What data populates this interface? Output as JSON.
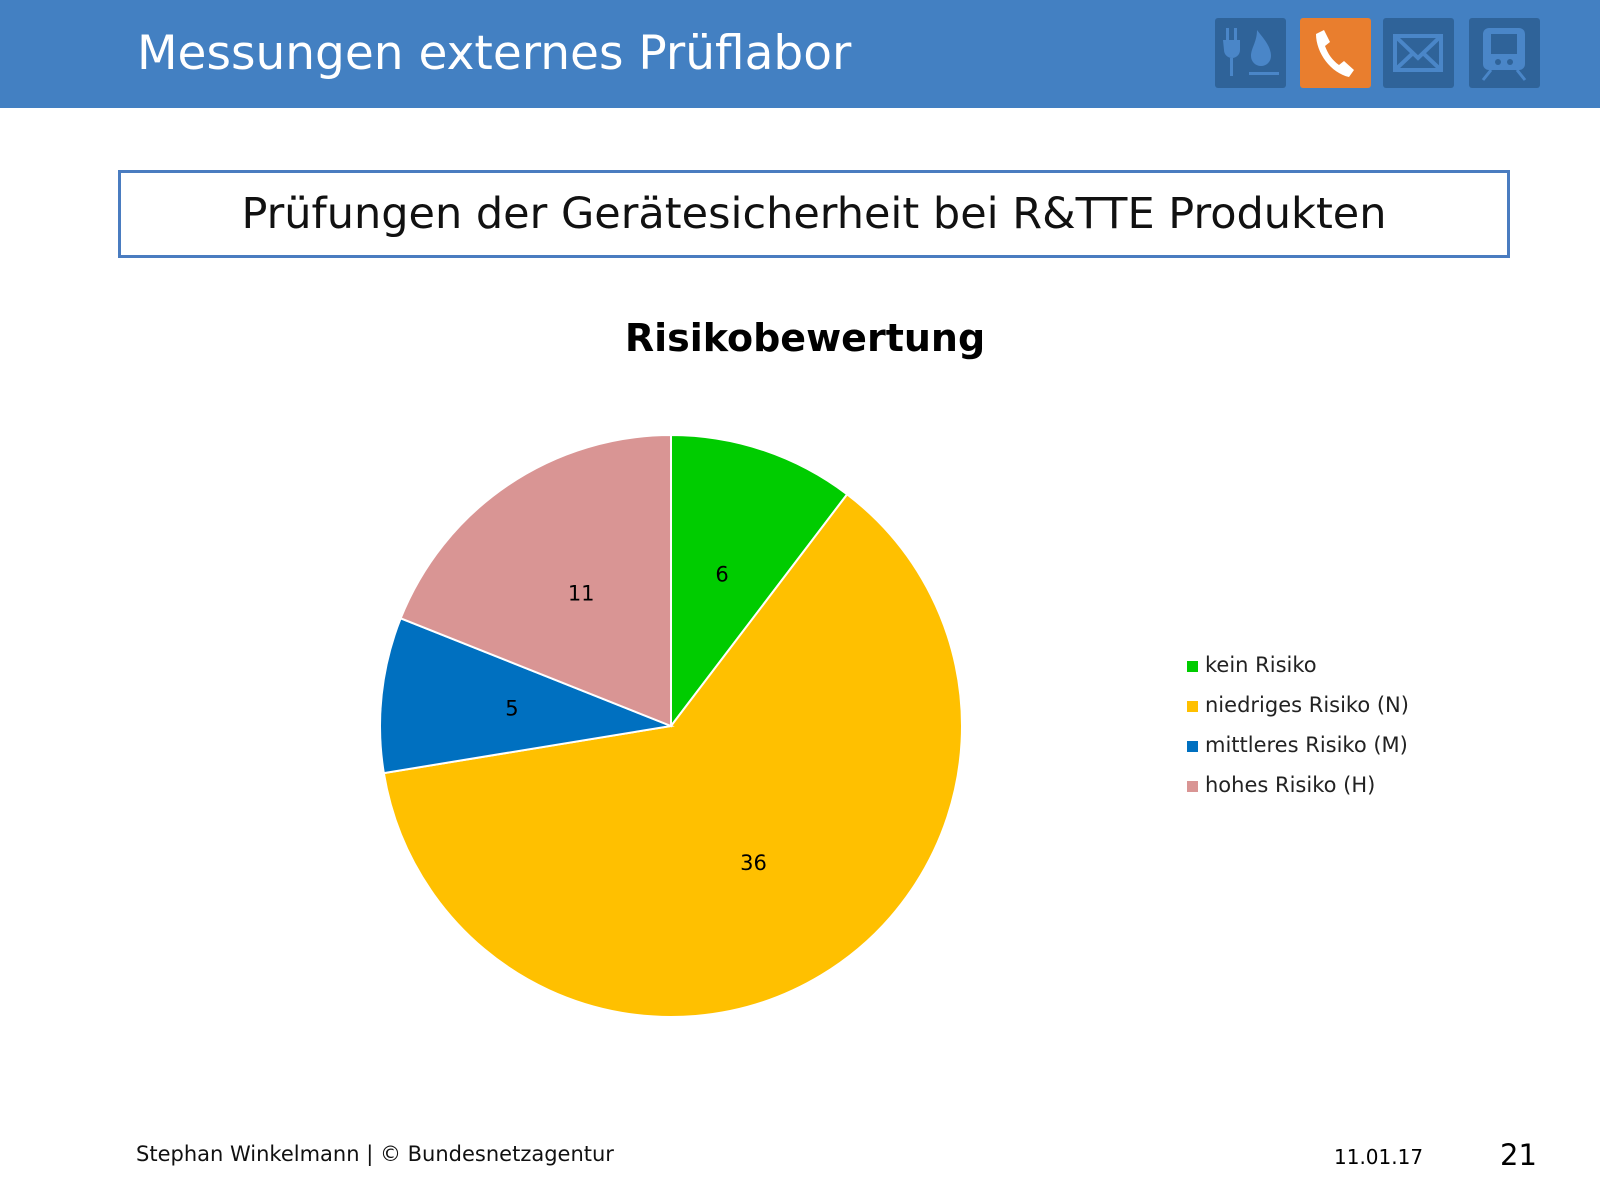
{
  "header": {
    "title": "Messungen externes Prüflabor",
    "icons": [
      "plug-flame-icon",
      "phone-icon",
      "envelope-icon",
      "train-icon"
    ],
    "active_color": "#e97e2e"
  },
  "subtitle": "Prüfungen der Gerätesicherheit bei R&TTE Produkten",
  "chart_data": {
    "type": "pie",
    "title": "Risikobewertung",
    "categories": [
      "kein Risiko",
      "niedriges Risiko (N)",
      "mittleres Risiko (M)",
      "hohes Risiko (H)"
    ],
    "values": [
      6,
      36,
      5,
      11
    ],
    "labels": [
      "6",
      "36",
      "5",
      "11"
    ],
    "colors": [
      "#00cc00",
      "#ffc000",
      "#0070c0",
      "#d99594"
    ],
    "legend": "right"
  },
  "footer": {
    "author": "Stephan Winkelmann | © Bundesnetzagentur",
    "date": "11.01.17",
    "page": "21"
  }
}
